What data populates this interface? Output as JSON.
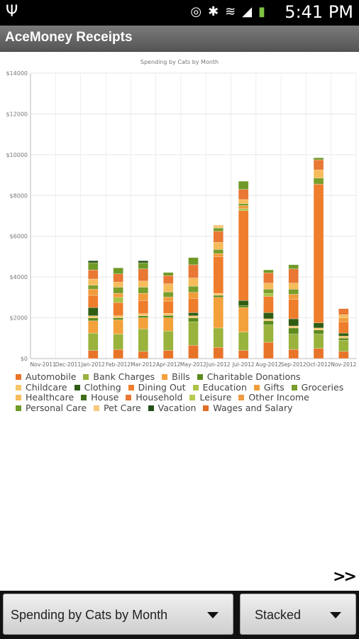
{
  "status_bar": {
    "time": "5:41 PM",
    "icons": [
      "usb-icon",
      "vibrate-icon",
      "bluetooth-icon",
      "wifi-icon",
      "signal-icon",
      "battery-icon"
    ]
  },
  "app": {
    "title": "AceMoney Receipts"
  },
  "navigation": {
    "next_label": ">>"
  },
  "controls": {
    "report_select": "Spending by Cats by Month",
    "mode_select": "Stacked"
  },
  "chart_data": {
    "type": "bar",
    "title": "Spending by Cats by Month",
    "stacked": true,
    "ylim": [
      0,
      14000
    ],
    "y_ticks": [
      "$0",
      "$2000",
      "$4000",
      "$6000",
      "$8000",
      "$10000",
      "$12000",
      "$14000"
    ],
    "categories": [
      "Nov-2011",
      "Dec-2011",
      "Jan-2012",
      "Feb-2012",
      "Mar-2012",
      "Apr-2012",
      "May-2012",
      "Jun-2012",
      "Jul-2012",
      "Aug-2012",
      "Sep-2012",
      "Oct-2012",
      "Nov-2012"
    ],
    "series": [
      {
        "name": "Automobile",
        "color": "#e8742a",
        "values": [
          0,
          0,
          400,
          450,
          350,
          400,
          650,
          550,
          400,
          800,
          450,
          500,
          350
        ]
      },
      {
        "name": "Bank Charges",
        "color": "#99b33c",
        "values": [
          0,
          0,
          850,
          750,
          1100,
          950,
          1150,
          950,
          900,
          850,
          750,
          700,
          550
        ]
      },
      {
        "name": "Bills",
        "color": "#f3a13b",
        "values": [
          0,
          0,
          600,
          700,
          550,
          650,
          0,
          1500,
          1200,
          0,
          0,
          0,
          0
        ]
      },
      {
        "name": "Charitable Donations",
        "color": "#5e8a1e",
        "values": [
          0,
          0,
          150,
          100,
          100,
          120,
          200,
          100,
          100,
          200,
          300,
          200,
          100
        ]
      },
      {
        "name": "Childcare",
        "color": "#f6c56a",
        "values": [
          0,
          0,
          100,
          100,
          100,
          100,
          100,
          100,
          0,
          100,
          100,
          100,
          100
        ]
      },
      {
        "name": "Clothing",
        "color": "#2f5d14",
        "values": [
          0,
          0,
          400,
          0,
          0,
          0,
          150,
          0,
          250,
          300,
          350,
          250,
          150
        ]
      },
      {
        "name": "Dining Out",
        "color": "#ee7d2c",
        "values": [
          0,
          0,
          600,
          650,
          650,
          600,
          700,
          1800,
          4400,
          800,
          950,
          6800,
          550
        ]
      },
      {
        "name": "Education",
        "color": "#a9c445",
        "values": [
          0,
          0,
          0,
          250,
          0,
          0,
          0,
          0,
          100,
          150,
          0,
          0,
          0
        ]
      },
      {
        "name": "Gifts",
        "color": "#f19c3b",
        "values": [
          0,
          0,
          300,
          200,
          350,
          200,
          300,
          150,
          150,
          0,
          250,
          0,
          200
        ]
      },
      {
        "name": "Groceries",
        "color": "#7a9e2c",
        "values": [
          0,
          0,
          200,
          300,
          300,
          250,
          300,
          200,
          100,
          200,
          250,
          300,
          0
        ]
      },
      {
        "name": "Healthcare",
        "color": "#f6bb5b",
        "values": [
          0,
          0,
          300,
          250,
          300,
          400,
          400,
          350,
          200,
          300,
          300,
          400,
          150
        ]
      },
      {
        "name": "House",
        "color": "#3d6d18",
        "values": [
          0,
          0,
          0,
          0,
          0,
          0,
          0,
          0,
          0,
          0,
          0,
          0,
          0
        ]
      },
      {
        "name": "Household",
        "color": "#e87834",
        "values": [
          0,
          0,
          450,
          400,
          600,
          400,
          650,
          550,
          500,
          500,
          700,
          500,
          300
        ]
      },
      {
        "name": "Leisure",
        "color": "#b6cc4e",
        "values": [
          0,
          0,
          0,
          0,
          0,
          0,
          0,
          0,
          0,
          0,
          0,
          0,
          0
        ]
      },
      {
        "name": "Other Income",
        "color": "#f09b45",
        "values": [
          0,
          0,
          0,
          0,
          0,
          0,
          0,
          0,
          0,
          0,
          0,
          0,
          0
        ]
      },
      {
        "name": "Personal Care",
        "color": "#6f9a28",
        "values": [
          0,
          0,
          350,
          300,
          300,
          150,
          350,
          150,
          400,
          150,
          200,
          100,
          0
        ]
      },
      {
        "name": "Pet Care",
        "color": "#f8c77b",
        "values": [
          0,
          0,
          0,
          0,
          0,
          0,
          0,
          150,
          0,
          0,
          0,
          0,
          0
        ]
      },
      {
        "name": "Vacation",
        "color": "#24501a",
        "values": [
          0,
          0,
          100,
          0,
          100,
          0,
          0,
          0,
          0,
          0,
          0,
          0,
          0
        ]
      },
      {
        "name": "Wages and Salary",
        "color": "#e06e23",
        "values": [
          0,
          0,
          0,
          0,
          0,
          0,
          0,
          0,
          0,
          0,
          0,
          0,
          0
        ]
      }
    ]
  }
}
